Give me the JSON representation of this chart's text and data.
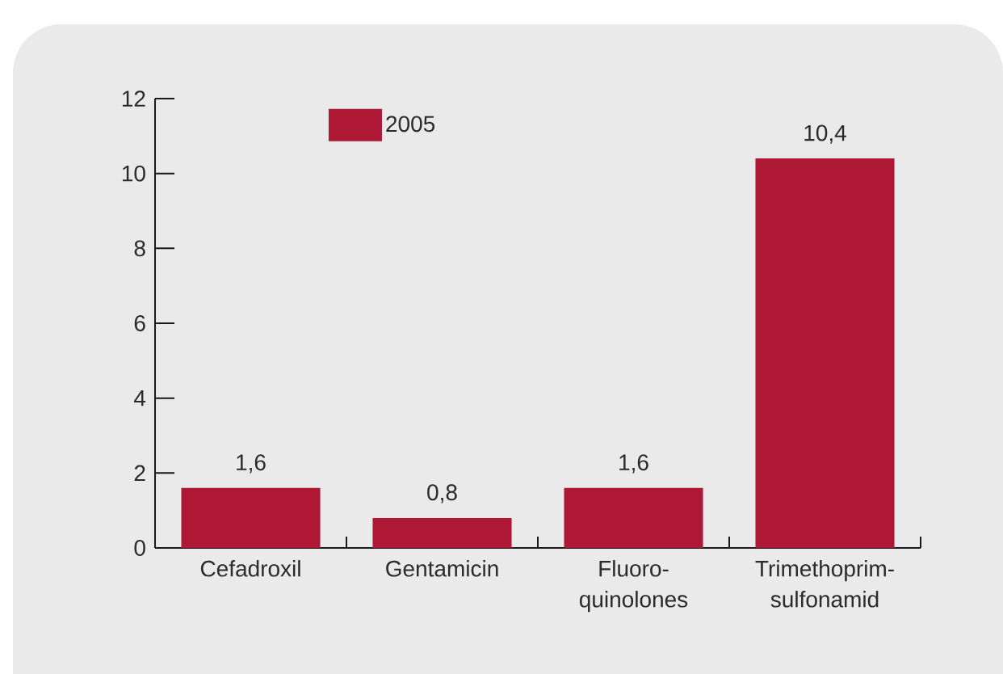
{
  "chart_data": {
    "type": "bar",
    "categories": [
      "Cefadroxil",
      "Gentamicin",
      "Fluoro-quinolones",
      "Trimethoprim-sulfonamid"
    ],
    "series": [
      {
        "name": "2005",
        "color": "#ae1835",
        "values": [
          1.6,
          0.8,
          1.6,
          10.4
        ],
        "value_labels": [
          "1,6",
          "0,8",
          "1,6",
          "10,4"
        ]
      }
    ],
    "ylim": [
      0,
      12
    ],
    "yticks": [
      0,
      2,
      4,
      6,
      8,
      10,
      12
    ],
    "legend": "top left"
  }
}
